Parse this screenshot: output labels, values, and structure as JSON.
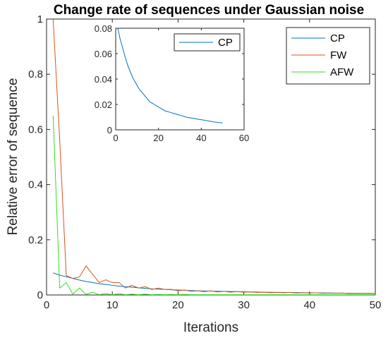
{
  "chart_data": [
    {
      "type": "line",
      "title": "Change rate of sequences under Gaussian noise",
      "xlabel": "Iterations",
      "ylabel": "Relative error of sequence",
      "xlim": [
        0,
        50
      ],
      "ylim": [
        0,
        1
      ],
      "xticks": [
        "0",
        "10",
        "20",
        "30",
        "40",
        "50"
      ],
      "yticks": [
        "0",
        "0.2",
        "0.4",
        "0.6",
        "0.8",
        "1"
      ],
      "legend": "top-right",
      "series": [
        {
          "name": "CP",
          "color": "#0072BD",
          "x": [
            1,
            2,
            3,
            4,
            5,
            6,
            7,
            8,
            9,
            10,
            11,
            12,
            13,
            14,
            15,
            16,
            17,
            18,
            19,
            20,
            21,
            22,
            23,
            24,
            25,
            26,
            27,
            28,
            29,
            30,
            31,
            32,
            33,
            34,
            35,
            36,
            37,
            38,
            39,
            40,
            41,
            42,
            43,
            44,
            45,
            46,
            47,
            48,
            49,
            50
          ],
          "y": [
            0.08,
            0.072,
            0.066,
            0.06,
            0.054,
            0.049,
            0.045,
            0.041,
            0.038,
            0.035,
            0.032,
            0.03,
            0.028,
            0.026,
            0.024,
            0.022,
            0.021,
            0.02,
            0.019,
            0.018,
            0.017,
            0.016,
            0.015,
            0.0145,
            0.014,
            0.0135,
            0.013,
            0.0125,
            0.012,
            0.0115,
            0.011,
            0.0105,
            0.01,
            0.0097,
            0.0094,
            0.0091,
            0.0088,
            0.0085,
            0.0082,
            0.008,
            0.0077,
            0.0074,
            0.0071,
            0.0068,
            0.0065,
            0.0062,
            0.006,
            0.0058,
            0.0056,
            0.0054
          ]
        },
        {
          "name": "FW",
          "color": "#D95319",
          "x": [
            1,
            2,
            3,
            4,
            5,
            6,
            7,
            8,
            9,
            10,
            11,
            12,
            13,
            14,
            15,
            16,
            17,
            18,
            19,
            20,
            21,
            22,
            23,
            24,
            25,
            26,
            27,
            28,
            29,
            30,
            31,
            32,
            33,
            34,
            35,
            36,
            37,
            38,
            39,
            40,
            41,
            42,
            43,
            44,
            45,
            46,
            47,
            48,
            49,
            50
          ],
          "y": [
            1.0,
            0.56,
            0.07,
            0.06,
            0.065,
            0.105,
            0.075,
            0.045,
            0.055,
            0.045,
            0.045,
            0.025,
            0.035,
            0.025,
            0.03,
            0.02,
            0.025,
            0.02,
            0.02,
            0.015,
            0.018,
            0.013,
            0.015,
            0.012,
            0.015,
            0.011,
            0.013,
            0.01,
            0.012,
            0.01,
            0.011,
            0.009,
            0.01,
            0.008,
            0.009,
            0.008,
            0.009,
            0.007,
            0.008,
            0.007,
            0.008,
            0.006,
            0.007,
            0.006,
            0.007,
            0.005,
            0.006,
            0.005,
            0.006,
            0.005
          ]
        },
        {
          "name": "AFW",
          "color": "#33DD22",
          "x": [
            1,
            2,
            3,
            4,
            5,
            6,
            7,
            8,
            9,
            10,
            11,
            12,
            13,
            14,
            15,
            16,
            17,
            18,
            19,
            20,
            21,
            22,
            23,
            24,
            25,
            26,
            27,
            28,
            29,
            30,
            31,
            32,
            33,
            34,
            35,
            36,
            37,
            38,
            39,
            40,
            41,
            42,
            43,
            44,
            45,
            46,
            47,
            48,
            49,
            50
          ],
          "y": [
            0.65,
            0.025,
            0.045,
            0.003,
            0.025,
            0.002,
            0.01,
            0.001,
            0.005,
            0.001,
            0.004,
            0.001,
            0.003,
            0.001,
            0.003,
            0.001,
            0.002,
            0.001,
            0.002,
            0.001,
            0.002,
            0.001,
            0.001,
            0.001,
            0.001,
            0.001,
            0.001,
            0.001,
            0.001,
            0.001,
            0.001,
            0.001,
            0.001,
            0.001,
            0.001,
            0.001,
            0.001,
            0.001,
            0.001,
            0.001,
            0.001,
            0.001,
            0.001,
            0.001,
            0.001,
            0.001,
            0.001,
            0.001,
            0.001,
            0.001
          ]
        }
      ]
    },
    {
      "type": "line",
      "title": "",
      "xlabel": "",
      "ylabel": "",
      "xlim": [
        0,
        60
      ],
      "ylim": [
        0,
        0.08
      ],
      "xticks": [
        "0",
        "20",
        "40",
        "60"
      ],
      "yticks": [
        "0",
        "0.02",
        "0.04",
        "0.06",
        "0.08"
      ],
      "legend": "top-right",
      "series": [
        {
          "name": "CP",
          "color": "#0072BD",
          "x": [
            1,
            2,
            3,
            4,
            5,
            6,
            7,
            8,
            9,
            10,
            11,
            12,
            13,
            14,
            15,
            16,
            17,
            18,
            19,
            20,
            21,
            22,
            23,
            24,
            25,
            26,
            27,
            28,
            29,
            30,
            31,
            32,
            33,
            34,
            35,
            36,
            37,
            38,
            39,
            40,
            41,
            42,
            43,
            44,
            45,
            46,
            47,
            48,
            49,
            50
          ],
          "y": [
            0.08,
            0.072,
            0.066,
            0.06,
            0.054,
            0.049,
            0.045,
            0.041,
            0.038,
            0.035,
            0.032,
            0.03,
            0.028,
            0.026,
            0.024,
            0.022,
            0.021,
            0.02,
            0.019,
            0.018,
            0.017,
            0.016,
            0.015,
            0.0145,
            0.014,
            0.0135,
            0.013,
            0.0125,
            0.012,
            0.0115,
            0.011,
            0.0105,
            0.01,
            0.0097,
            0.0094,
            0.0091,
            0.0088,
            0.0085,
            0.0082,
            0.008,
            0.0077,
            0.0074,
            0.0071,
            0.0068,
            0.0065,
            0.0062,
            0.006,
            0.0058,
            0.0056,
            0.0054
          ]
        }
      ]
    }
  ]
}
